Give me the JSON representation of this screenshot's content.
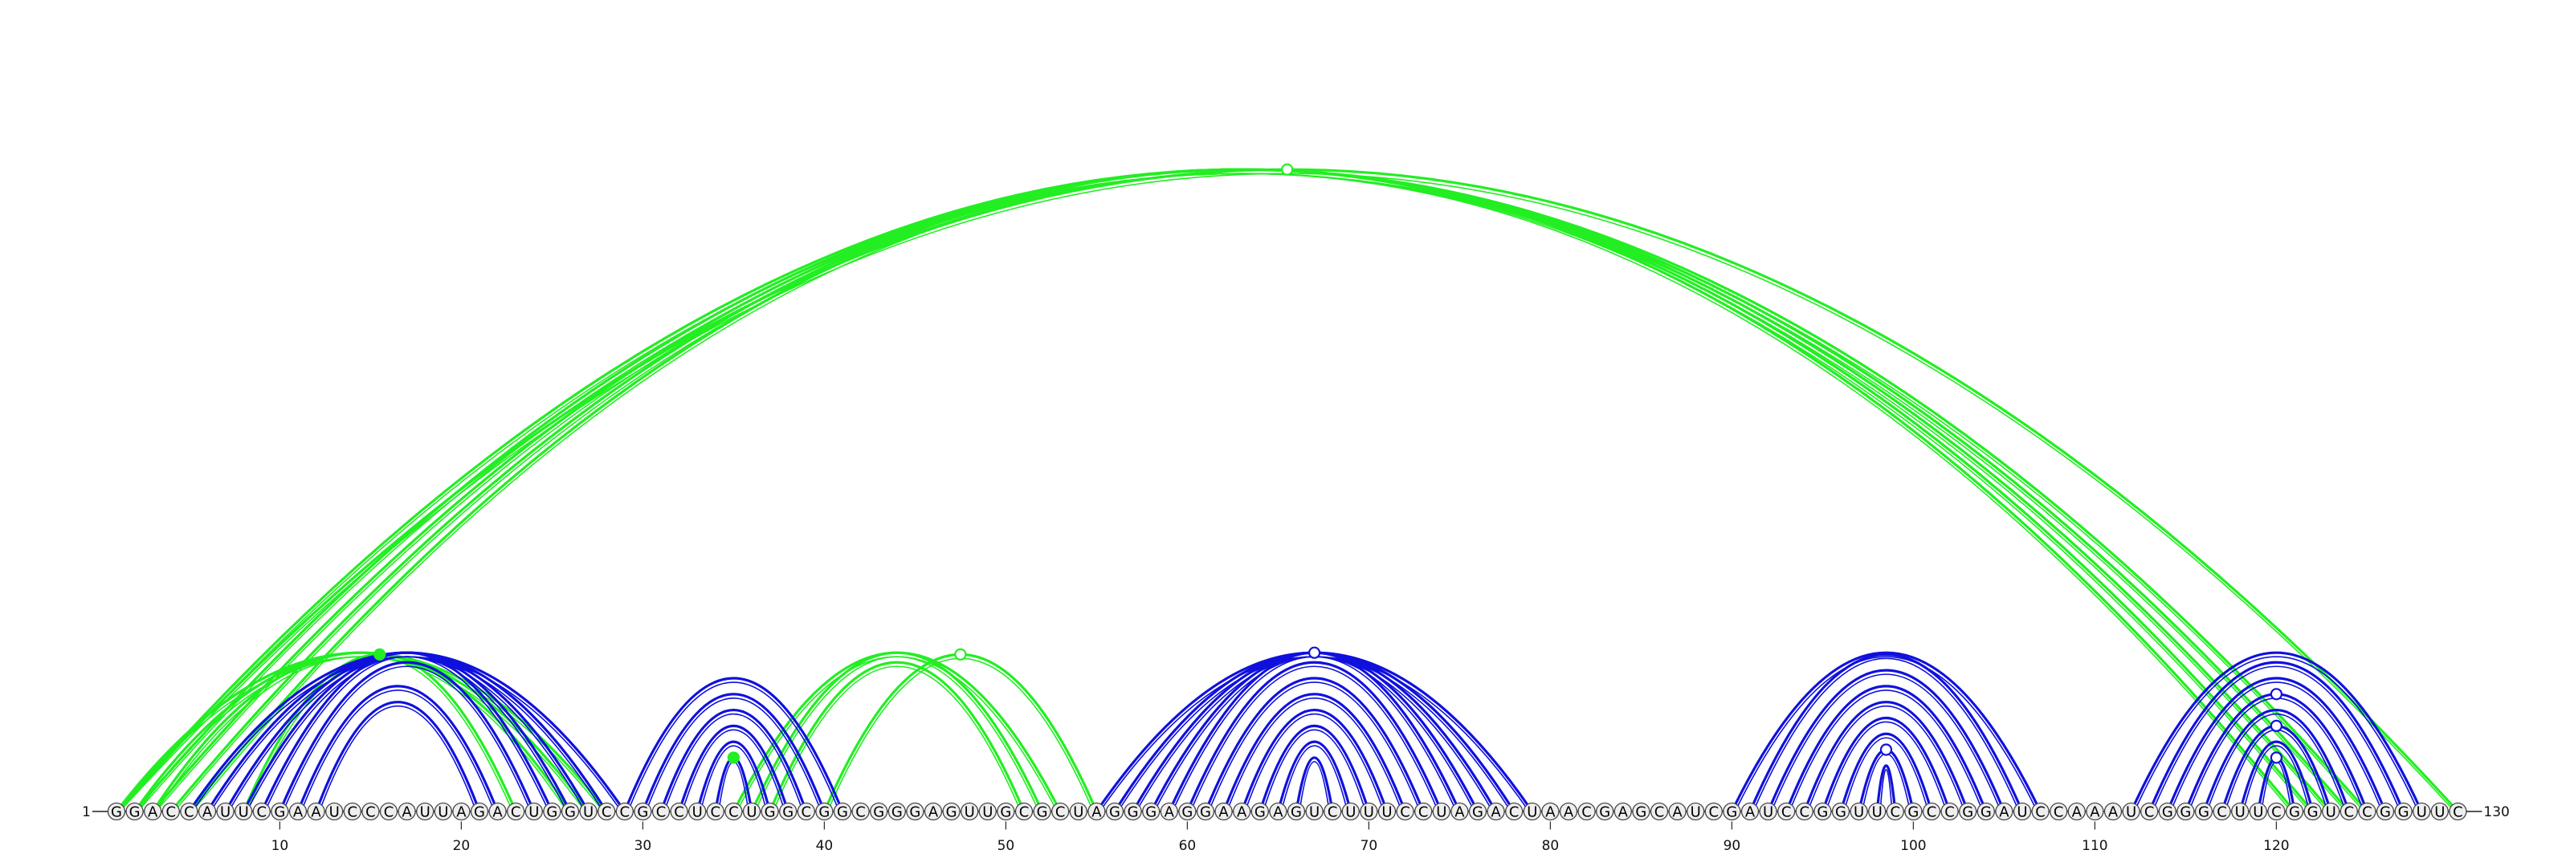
{
  "sequence": "GGACCAUUCGAAUCCCAUUAGACUGGUCCGCCUCCUGGCGGCGGGAGUUGCGCUAGGGAGGAAGAGUCUUUCCUAGACUAACGAGCAUCGAUCCGGUUCGCCGGAUCCAAAUCGGGCUUCGGUCCGGUUC",
  "start_label": "1",
  "end_label": "130",
  "tick_labels": [
    "10",
    "20",
    "30",
    "40",
    "50",
    "60",
    "70",
    "80",
    "90",
    "100",
    "110",
    "120"
  ],
  "colors": {
    "green": "#22ee22",
    "blue": "#1010dd",
    "nucleotide_fill": "#eeeeee"
  },
  "chart_data": {
    "type": "arc",
    "length": 130,
    "green_pairs": [
      [
        1,
        125
      ],
      [
        2,
        124
      ],
      [
        3,
        123
      ],
      [
        4,
        122
      ],
      [
        5,
        121
      ],
      [
        1,
        130
      ],
      [
        1,
        28
      ],
      [
        2,
        27
      ],
      [
        3,
        26
      ],
      [
        8,
        23
      ],
      [
        35,
        53
      ],
      [
        36,
        52
      ],
      [
        37,
        51
      ],
      [
        40,
        55
      ]
    ],
    "blue_pairs": [
      [
        5,
        29
      ],
      [
        6,
        28
      ],
      [
        7,
        27
      ],
      [
        8,
        26
      ],
      [
        9,
        25
      ],
      [
        10,
        24
      ],
      [
        11,
        22
      ],
      [
        12,
        21
      ],
      [
        29,
        41
      ],
      [
        30,
        40
      ],
      [
        31,
        39
      ],
      [
        32,
        38
      ],
      [
        33,
        37
      ],
      [
        34,
        36
      ],
      [
        55,
        79
      ],
      [
        56,
        78
      ],
      [
        57,
        77
      ],
      [
        58,
        76
      ],
      [
        59,
        75
      ],
      [
        60,
        74
      ],
      [
        61,
        73
      ],
      [
        62,
        72
      ],
      [
        63,
        71
      ],
      [
        64,
        70
      ],
      [
        65,
        69
      ],
      [
        66,
        68
      ],
      [
        90,
        107
      ],
      [
        91,
        106
      ],
      [
        92,
        105
      ],
      [
        93,
        104
      ],
      [
        94,
        103
      ],
      [
        95,
        102
      ],
      [
        96,
        101
      ],
      [
        97,
        100
      ],
      [
        98,
        99
      ],
      [
        112,
        128
      ],
      [
        113,
        127
      ],
      [
        114,
        126
      ],
      [
        115,
        125
      ],
      [
        116,
        124
      ],
      [
        117,
        123
      ],
      [
        118,
        122
      ],
      [
        119,
        121
      ]
    ]
  }
}
